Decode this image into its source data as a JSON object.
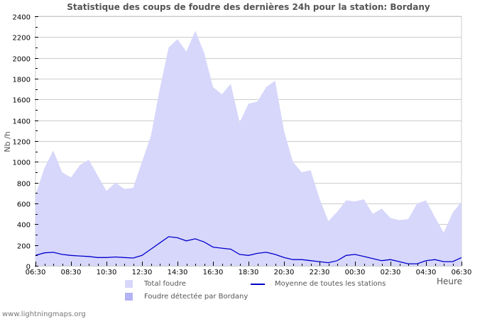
{
  "chart_data": {
    "type": "area",
    "title": "Statistique des coups de foudre des dernières 24h pour la station: Bordany",
    "xlabel": "Heure",
    "ylabel": "Nb /h",
    "ylim": [
      0,
      2400
    ],
    "yticks": [
      0,
      200,
      400,
      600,
      800,
      1000,
      1200,
      1400,
      1600,
      1800,
      2000,
      2200,
      2400
    ],
    "xtick_labels": [
      "06:30",
      "08:30",
      "10:30",
      "12:30",
      "14:30",
      "16:30",
      "18:30",
      "20:30",
      "22:30",
      "00:30",
      "02:30",
      "04:30",
      "06:30"
    ],
    "grid": true,
    "legend_position": "bottom",
    "x": [
      "06:30",
      "07:00",
      "07:30",
      "08:00",
      "08:30",
      "09:00",
      "09:30",
      "10:00",
      "10:30",
      "11:00",
      "11:30",
      "12:00",
      "12:30",
      "13:00",
      "13:30",
      "14:00",
      "14:30",
      "15:00",
      "15:30",
      "16:00",
      "16:30",
      "17:00",
      "17:30",
      "18:00",
      "18:30",
      "19:00",
      "19:30",
      "20:00",
      "20:30",
      "21:00",
      "21:30",
      "22:00",
      "22:30",
      "23:00",
      "23:30",
      "00:00",
      "00:30",
      "01:00",
      "01:30",
      "02:00",
      "02:30",
      "03:00",
      "03:30",
      "04:00",
      "04:30",
      "05:00",
      "05:30",
      "06:00",
      "06:30"
    ],
    "series": [
      {
        "name": "Total foudre",
        "type": "area",
        "color": "#d7d7fb",
        "values": [
          680,
          940,
          1110,
          900,
          850,
          970,
          1020,
          870,
          720,
          800,
          740,
          750,
          1000,
          1250,
          1700,
          2100,
          2180,
          2060,
          2260,
          2050,
          1720,
          1650,
          1750,
          1380,
          1560,
          1580,
          1720,
          1780,
          1300,
          1000,
          900,
          920,
          650,
          430,
          520,
          630,
          620,
          640,
          500,
          550,
          460,
          440,
          450,
          600,
          630,
          470,
          320,
          510,
          620
        ]
      },
      {
        "name": "Foudre détectée par Bordany",
        "type": "area",
        "color": "#b3b3f5",
        "values": [
          0,
          0,
          0,
          0,
          0,
          0,
          0,
          0,
          0,
          0,
          0,
          0,
          0,
          0,
          0,
          0,
          0,
          0,
          0,
          0,
          0,
          0,
          0,
          0,
          0,
          0,
          0,
          0,
          0,
          0,
          0,
          0,
          0,
          0,
          0,
          0,
          0,
          0,
          0,
          0,
          0,
          0,
          0,
          0,
          0,
          0,
          0,
          0,
          0
        ]
      },
      {
        "name": "Moyenne de toutes les stations",
        "type": "line",
        "color": "#0000cc",
        "values": [
          100,
          125,
          130,
          110,
          100,
          95,
          90,
          80,
          80,
          85,
          80,
          75,
          100,
          160,
          220,
          280,
          270,
          240,
          260,
          230,
          180,
          170,
          160,
          110,
          100,
          120,
          130,
          110,
          80,
          60,
          60,
          50,
          40,
          30,
          50,
          100,
          110,
          90,
          70,
          50,
          60,
          40,
          20,
          20,
          50,
          60,
          40,
          40,
          80
        ]
      }
    ]
  },
  "legend": {
    "total": "Total foudre",
    "detected": "Foudre détectée par Bordany",
    "average": "Moyenne de toutes les stations"
  },
  "footer": "www.lightningmaps.org"
}
